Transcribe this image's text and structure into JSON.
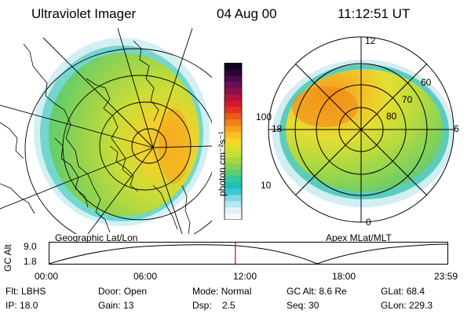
{
  "header": {
    "instrument": "Ultraviolet Imager",
    "date": "04 Aug 00",
    "time": "11:12:51 UT"
  },
  "left_panel": {
    "caption": "Geographic Lat/Lon"
  },
  "right_panel": {
    "caption": "Apex MLat/MLT",
    "lat_labels": [
      "60",
      "70",
      "80"
    ],
    "mlt_labels": {
      "top": "12",
      "left": "18",
      "right": "6",
      "bottom": "0"
    }
  },
  "colorbar": {
    "label": "photon cm⁻²s⁻¹",
    "tick_100": "100",
    "tick_10": "10",
    "colors": [
      "#fafafa",
      "#e0f2f6",
      "#b9e6ee",
      "#80d8e2",
      "#3fc6cf",
      "#1ec0b8",
      "#36c79c",
      "#5acd78",
      "#7fd25a",
      "#a2d844",
      "#c4de36",
      "#dcdf2c",
      "#f0d828",
      "#f8c020",
      "#f6a21a",
      "#f08018",
      "#ea5c1a",
      "#e4341e",
      "#d31a2a",
      "#b3123a",
      "#8e1048",
      "#6c0e58",
      "#4a0a48",
      "#2a0636",
      "#120324"
    ]
  },
  "timeline": {
    "axis_label": "GC Alt",
    "y_ticks": [
      "9.0",
      "1.8"
    ],
    "x_ticks": [
      "00:00",
      "06:00",
      "12:00",
      "18:00",
      "23:59"
    ],
    "current_time_fraction": 0.4672
  },
  "status": {
    "row1": [
      {
        "key": "Flt:",
        "value": "LBHS"
      },
      {
        "key": "Door:",
        "value": "Open"
      },
      {
        "key": "Mode:",
        "value": "Normal"
      },
      {
        "key": "GC Alt:",
        "value": "8.6 Re"
      },
      {
        "key": "GLat:",
        "value": "68.4"
      }
    ],
    "row2": [
      {
        "key": "IP:",
        "value": "18.0"
      },
      {
        "key": "Gain:",
        "value": "13"
      },
      {
        "key": "Dsp:",
        "value": "2.5"
      },
      {
        "key": "Seq:",
        "value": "30"
      },
      {
        "key": "GLon:",
        "value": "229.3"
      }
    ]
  }
}
